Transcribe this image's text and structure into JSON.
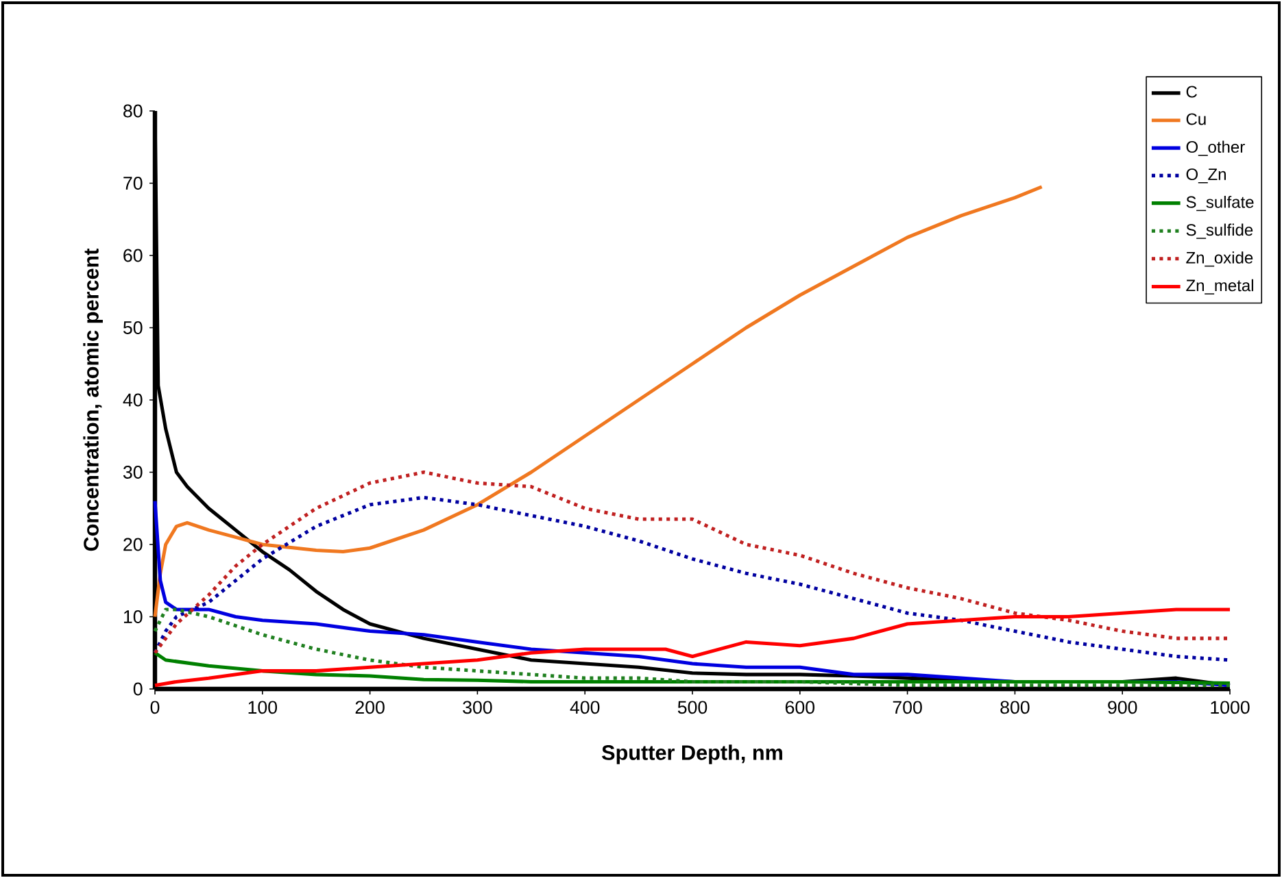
{
  "chart_data": {
    "type": "line",
    "xlabel": "Sputter Depth, nm",
    "ylabel": "Concentration, atomic percent",
    "xlim": [
      0,
      1000
    ],
    "ylim": [
      0,
      80
    ],
    "xticks": [
      0,
      100,
      200,
      300,
      400,
      500,
      600,
      700,
      800,
      900,
      1000
    ],
    "yticks": [
      0,
      10,
      20,
      30,
      40,
      50,
      60,
      70,
      80
    ],
    "grid": false,
    "legend": "top right",
    "series": [
      {
        "name": "C",
        "color": "#000000",
        "line_style": "solid",
        "x": [
          0,
          3,
          10,
          20,
          30,
          50,
          75,
          100,
          125,
          150,
          175,
          200,
          250,
          300,
          350,
          400,
          450,
          500,
          550,
          600,
          650,
          700,
          750,
          800,
          850,
          900,
          950,
          1000
        ],
        "values": [
          80,
          42,
          36,
          30,
          28,
          25,
          22,
          19,
          16.5,
          13.5,
          11,
          9,
          7,
          5.5,
          4,
          3.5,
          3,
          2.2,
          2,
          2,
          1.8,
          1.5,
          1.2,
          1,
          1,
          1,
          1.5,
          0.5
        ]
      },
      {
        "name": "Cu",
        "color": "#f07820",
        "line_style": "solid",
        "x": [
          0,
          5,
          10,
          20,
          30,
          50,
          75,
          100,
          150,
          175,
          200,
          250,
          300,
          350,
          400,
          450,
          500,
          550,
          600,
          650,
          700,
          750,
          800,
          825
        ],
        "values": [
          10,
          16,
          20,
          22.5,
          23,
          22,
          21,
          20,
          19.2,
          19,
          19.5,
          22,
          25.5,
          30,
          35,
          40,
          45,
          50,
          54.5,
          58.5,
          62.5,
          65.5,
          68,
          69.5
        ]
      },
      {
        "name": "O_other",
        "color": "#0000e0",
        "line_style": "solid",
        "x": [
          0,
          5,
          10,
          20,
          50,
          75,
          100,
          150,
          200,
          250,
          300,
          350,
          400,
          450,
          500,
          550,
          600,
          650,
          700,
          750,
          800,
          850,
          900,
          950,
          1000
        ],
        "values": [
          26,
          15,
          12,
          11,
          11,
          10,
          9.5,
          9,
          8,
          7.5,
          6.5,
          5.5,
          5,
          4.5,
          3.5,
          3,
          3,
          2,
          2,
          1.5,
          1,
          null,
          1,
          1,
          0.5
        ]
      },
      {
        "name": "O_Zn",
        "color": "#0000a0",
        "line_style": "dotted",
        "x": [
          0,
          10,
          20,
          50,
          75,
          100,
          150,
          200,
          250,
          300,
          350,
          400,
          450,
          500,
          550,
          600,
          650,
          700,
          750,
          800,
          850,
          900,
          950,
          1000
        ],
        "values": [
          5,
          8,
          10,
          12,
          15,
          18,
          22.5,
          25.5,
          26.5,
          25.5,
          24,
          22.5,
          20.5,
          18,
          16,
          14.5,
          12.5,
          10.5,
          9.5,
          8,
          6.5,
          5.5,
          4.5,
          4
        ]
      },
      {
        "name": "S_sulfate",
        "color": "#008000",
        "line_style": "solid",
        "x": [
          0,
          10,
          20,
          50,
          100,
          150,
          200,
          250,
          300,
          350,
          400,
          500,
          600,
          700,
          800,
          900,
          1000
        ],
        "values": [
          5,
          4,
          3.8,
          3.2,
          2.5,
          2,
          1.8,
          1.3,
          1.2,
          1,
          1,
          1,
          1,
          1,
          1,
          1,
          0.8
        ]
      },
      {
        "name": "S_sulfide",
        "color": "#208020",
        "line_style": "dotted",
        "x": [
          0,
          10,
          20,
          50,
          100,
          150,
          200,
          250,
          300,
          350,
          400,
          450,
          500,
          550,
          600,
          700,
          800,
          900,
          1000
        ],
        "values": [
          8,
          11,
          11,
          10,
          7.5,
          5.5,
          4,
          3,
          2.5,
          2,
          1.5,
          1.5,
          1,
          1,
          1,
          0.5,
          0.5,
          0.5,
          0.5
        ]
      },
      {
        "name": "Zn_oxide",
        "color": "#c02020",
        "line_style": "dotted",
        "x": [
          0,
          10,
          20,
          50,
          75,
          100,
          150,
          200,
          250,
          300,
          350,
          400,
          450,
          500,
          550,
          600,
          650,
          700,
          750,
          800,
          850,
          900,
          950,
          1000
        ],
        "values": [
          5,
          7,
          9,
          13,
          17,
          20,
          25,
          28.5,
          30,
          28.5,
          28,
          25,
          23.5,
          23.5,
          20,
          18.5,
          16,
          14,
          12.5,
          10.5,
          9.5,
          8,
          7,
          7
        ]
      },
      {
        "name": "Zn_metal",
        "color": "#ff0000",
        "line_style": "solid",
        "x": [
          0,
          20,
          50,
          100,
          150,
          200,
          250,
          300,
          350,
          400,
          450,
          475,
          500,
          550,
          600,
          650,
          700,
          750,
          800,
          850,
          900,
          950,
          1000
        ],
        "values": [
          0.5,
          1,
          1.5,
          2.5,
          2.5,
          3,
          3.5,
          4,
          5,
          5.5,
          5.5,
          5.5,
          4.5,
          6.5,
          6,
          7,
          9,
          9.5,
          10,
          10,
          10.5,
          11,
          11
        ]
      }
    ]
  }
}
